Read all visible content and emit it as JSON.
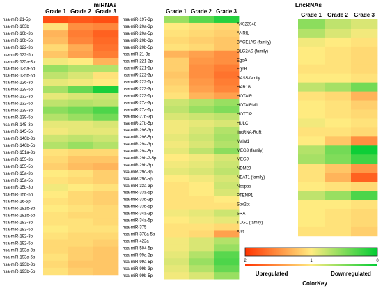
{
  "chart_data": [
    {
      "type": "heatmap",
      "title": "miRNAs",
      "columns": [
        "Grade 1",
        "Grade 2",
        "Grade 3"
      ],
      "rows": [
        {
          "label": "hsa-miR-21-5p",
          "values": [
            1.85,
            1.8,
            1.85
          ]
        },
        {
          "label": "hsa-miR-103b",
          "values": [
            1.05,
            1.5,
            1.55
          ]
        },
        {
          "label": "hsa-miR-10b-3p",
          "values": [
            1.3,
            1.6,
            1.75
          ]
        },
        {
          "label": "hsa-miR-10b-5p",
          "values": [
            1.25,
            1.55,
            1.7
          ]
        },
        {
          "label": "hsa-miR-122-3p",
          "values": [
            1.1,
            1.35,
            1.65
          ]
        },
        {
          "label": "hsa-miR-122-5p",
          "values": [
            1.2,
            1.4,
            1.6
          ]
        },
        {
          "label": "hsa-miR-125a-3p",
          "values": [
            0.95,
            1.0,
            1.3
          ]
        },
        {
          "label": "hsa-miR-125a-5p",
          "values": [
            0.6,
            0.7,
            0.7
          ]
        },
        {
          "label": "hsa-miR-125b-5p",
          "values": [
            0.75,
            0.85,
            1.05
          ]
        },
        {
          "label": "hsa-miR-126-3p",
          "values": [
            0.9,
            0.95,
            1.0
          ]
        },
        {
          "label": "hsa-miR-129-5p",
          "values": [
            0.65,
            0.4,
            0.1
          ]
        },
        {
          "label": "hsa-miR-132-3p",
          "values": [
            0.9,
            0.85,
            0.8
          ]
        },
        {
          "label": "hsa-miR-132-5p",
          "values": [
            0.75,
            0.7,
            0.75
          ]
        },
        {
          "label": "hsa-miR-139-3p",
          "values": [
            0.55,
            0.45,
            0.3
          ]
        },
        {
          "label": "hsa-miR-139-5p",
          "values": [
            0.7,
            0.6,
            0.45
          ]
        },
        {
          "label": "hsa-miR-145-3p",
          "values": [
            0.9,
            0.9,
            0.85
          ]
        },
        {
          "label": "hsa-miR-145-5p",
          "values": [
            0.95,
            0.9,
            0.9
          ]
        },
        {
          "label": "hsa-miR-146b-3p",
          "values": [
            0.8,
            0.75,
            0.8
          ]
        },
        {
          "label": "hsa-miR-146b-5p",
          "values": [
            0.7,
            0.6,
            0.7
          ]
        },
        {
          "label": "hsa-miR-151a-3p",
          "values": [
            1.05,
            1.1,
            1.1
          ]
        },
        {
          "label": "hsa-miR-155-3p",
          "values": [
            1.1,
            1.2,
            1.2
          ]
        },
        {
          "label": "hsa-miR-155-5p",
          "values": [
            1.15,
            1.25,
            1.3
          ]
        },
        {
          "label": "hsa-miR-15a-3p",
          "values": [
            1.0,
            1.05,
            1.15
          ]
        },
        {
          "label": "hsa-miR-15a-5p",
          "values": [
            1.05,
            1.1,
            1.15
          ]
        },
        {
          "label": "hsa-miR-15b-3p",
          "values": [
            0.95,
            1.0,
            1.05
          ]
        },
        {
          "label": "hsa-miR-15b-5p",
          "values": [
            1.0,
            1.1,
            1.15
          ]
        },
        {
          "label": "hsa-miR-16-5p",
          "values": [
            1.05,
            1.1,
            1.15
          ]
        },
        {
          "label": "hsa-miR-181b-3p",
          "values": [
            1.0,
            1.05,
            1.1
          ]
        },
        {
          "label": "hsa-miR-181b-5p",
          "values": [
            1.05,
            1.1,
            1.1
          ]
        },
        {
          "label": "hsa-miR-183-3p",
          "values": [
            1.05,
            1.05,
            1.1
          ]
        },
        {
          "label": "hsa-miR-183-5p",
          "values": [
            1.0,
            1.05,
            1.05
          ]
        },
        {
          "label": "hsa-miR-192-3p",
          "values": [
            1.05,
            1.1,
            1.1
          ]
        },
        {
          "label": "hsa-miR-192-5p",
          "values": [
            1.1,
            1.1,
            1.15
          ]
        },
        {
          "label": "hsa-miR-193a-3p",
          "values": [
            1.1,
            1.15,
            1.2
          ]
        },
        {
          "label": "hsa-miR-193a-5p",
          "values": [
            1.05,
            1.15,
            1.2
          ]
        },
        {
          "label": "hsa-miR-193b-3p",
          "values": [
            1.1,
            1.2,
            1.2
          ]
        },
        {
          "label": "hsa-miR-193b-5p",
          "values": [
            1.05,
            1.15,
            1.2
          ]
        },
        {
          "label": "hsa-miR-197-3p",
          "values": [
            0.6,
            0.35,
            0.15
          ]
        },
        {
          "label": "hsa-miR-20a-3p",
          "values": [
            1.0,
            1.05,
            1.1
          ]
        },
        {
          "label": "hsa-miR-20a-5p",
          "values": [
            1.05,
            1.1,
            1.15
          ]
        },
        {
          "label": "hsa-miR-20b-3p",
          "values": [
            1.1,
            1.15,
            1.2
          ]
        },
        {
          "label": "hsa-miR-20b-5p",
          "values": [
            1.05,
            1.1,
            1.2
          ]
        },
        {
          "label": "hsa-miR-21-3p",
          "values": [
            1.3,
            1.4,
            1.5
          ]
        },
        {
          "label": "hsa-miR-221-3p",
          "values": [
            1.15,
            1.45,
            1.5
          ]
        },
        {
          "label": "hsa-miR-221-5p",
          "values": [
            1.15,
            1.5,
            1.6
          ]
        },
        {
          "label": "hsa-miR-222-3p",
          "values": [
            1.2,
            1.5,
            1.65
          ]
        },
        {
          "label": "hsa-miR-222-5p",
          "values": [
            1.15,
            1.45,
            1.6
          ]
        },
        {
          "label": "hsa-miR-223-3p",
          "values": [
            1.1,
            1.4,
            1.55
          ]
        },
        {
          "label": "hsa-miR-223-5p",
          "values": [
            1.05,
            1.3,
            1.4
          ]
        },
        {
          "label": "hsa-miR-27a-3p",
          "values": [
            0.8,
            0.7,
            0.6
          ]
        },
        {
          "label": "hsa-miR-27a-5p",
          "values": [
            0.75,
            0.6,
            0.5
          ]
        },
        {
          "label": "hsa-miR-27b-3p",
          "values": [
            0.85,
            0.8,
            0.75
          ]
        },
        {
          "label": "hsa-miR-27b-5p",
          "values": [
            0.95,
            0.9,
            0.85
          ]
        },
        {
          "label": "hsa-miR-296-3p",
          "values": [
            0.95,
            0.85,
            0.7
          ]
        },
        {
          "label": "hsa-miR-296-5p",
          "values": [
            0.9,
            0.8,
            0.65
          ]
        },
        {
          "label": "hsa-miR-29a-3p",
          "values": [
            0.95,
            0.85,
            0.7
          ]
        },
        {
          "label": "hsa-miR-29a-5p",
          "values": [
            0.9,
            0.75,
            0.55
          ]
        },
        {
          "label": "hsa-miR-29b-2-5p",
          "values": [
            1.0,
            0.95,
            0.85
          ]
        },
        {
          "label": "hsa-miR-29b-3p",
          "values": [
            0.95,
            0.9,
            0.8
          ]
        },
        {
          "label": "hsa-miR-29c-3p",
          "values": [
            0.9,
            0.85,
            0.75
          ]
        },
        {
          "label": "hsa-miR-29c-5p",
          "values": [
            1.0,
            0.95,
            0.85
          ]
        },
        {
          "label": "hsa-miR-33a-3p",
          "values": [
            1.05,
            1.0,
            0.8
          ]
        },
        {
          "label": "hsa-miR-33a-5p",
          "values": [
            1.05,
            1.0,
            0.85
          ]
        },
        {
          "label": "hsa-miR-33b-3p",
          "values": [
            1.05,
            1.05,
            1.0
          ]
        },
        {
          "label": "hsa-miR-33b-5p",
          "values": [
            1.05,
            1.05,
            1.05
          ]
        },
        {
          "label": "hsa-miR-34a-3p",
          "values": [
            0.95,
            0.9,
            0.8
          ]
        },
        {
          "label": "hsa-miR-34a-5p",
          "values": [
            1.0,
            0.95,
            0.9
          ]
        },
        {
          "label": "hsa-miR-375",
          "values": [
            1.05,
            1.05,
            1.1
          ]
        },
        {
          "label": "hsa-miR-378a-5p",
          "values": [
            1.05,
            1.1,
            1.4
          ]
        },
        {
          "label": "hsa-miR-422a",
          "values": [
            0.95,
            0.85,
            0.7
          ]
        },
        {
          "label": "hsa-miR-504-5p",
          "values": [
            0.95,
            0.85,
            0.6
          ]
        },
        {
          "label": "hsa-miR-99a-3p",
          "values": [
            0.9,
            0.7,
            0.35
          ]
        },
        {
          "label": "hsa-miR-99a-5p",
          "values": [
            0.85,
            0.6,
            0.3
          ]
        },
        {
          "label": "hsa-miR-99b-3p",
          "values": [
            0.9,
            0.7,
            0.4
          ]
        },
        {
          "label": "hsa-miR-99b-5p",
          "values": [
            0.95,
            0.85,
            0.6
          ]
        }
      ]
    },
    {
      "type": "heatmap",
      "title": "LncRNAs",
      "columns": [
        "Grade 1",
        "Grade 2",
        "Grade 3"
      ],
      "rows": [
        {
          "label": "AK023948",
          "values": [
            0.55,
            0.75,
            0.85
          ]
        },
        {
          "label": "ANRIL",
          "values": [
            0.7,
            0.85,
            0.95
          ]
        },
        {
          "label": "BACE1AS (family)",
          "values": [
            0.95,
            1.0,
            1.05
          ]
        },
        {
          "label": "DLG2AS (family)",
          "values": [
            1.0,
            1.05,
            1.1
          ]
        },
        {
          "label": "EgoA",
          "values": [
            1.0,
            1.05,
            1.1
          ]
        },
        {
          "label": "EgoB",
          "values": [
            1.05,
            1.05,
            1.1
          ]
        },
        {
          "label": "GAS5-family",
          "values": [
            1.0,
            1.0,
            1.05
          ]
        },
        {
          "label": "HAR1B",
          "values": [
            0.75,
            0.65,
            0.45
          ]
        },
        {
          "label": "HOTAIR",
          "values": [
            1.05,
            1.1,
            1.3
          ]
        },
        {
          "label": "HOTAIRM1",
          "values": [
            1.0,
            1.05,
            1.15
          ]
        },
        {
          "label": "HOTTIP",
          "values": [
            1.0,
            1.05,
            1.1
          ]
        },
        {
          "label": "HULC",
          "values": [
            0.95,
            1.0,
            1.05
          ]
        },
        {
          "label": "lincRNA-RoR",
          "values": [
            1.05,
            1.05,
            1.1
          ]
        },
        {
          "label": "Malat1",
          "values": [
            1.0,
            1.2,
            1.5
          ]
        },
        {
          "label": "MEG3 (family)",
          "values": [
            0.7,
            0.45,
            0.05
          ]
        },
        {
          "label": "MEG9",
          "values": [
            0.65,
            0.5,
            0.25
          ]
        },
        {
          "label": "NDM29",
          "values": [
            1.05,
            1.2,
            1.45
          ]
        },
        {
          "label": "NEAT1 (family)",
          "values": [
            1.05,
            1.3,
            1.75
          ]
        },
        {
          "label": "Nespas",
          "values": [
            1.0,
            1.05,
            1.1
          ]
        },
        {
          "label": "PTENP1",
          "values": [
            0.75,
            0.6,
            0.3
          ]
        },
        {
          "label": "Sox2ot",
          "values": [
            1.0,
            1.0,
            1.05
          ]
        },
        {
          "label": "SRA",
          "values": [
            1.0,
            1.05,
            1.1
          ]
        },
        {
          "label": "TUG1 (family)",
          "values": [
            1.0,
            1.05,
            1.1
          ]
        },
        {
          "label": "Xist",
          "values": [
            1.05,
            1.05,
            1.15
          ]
        }
      ]
    }
  ],
  "color_key": {
    "title": "ColorKey",
    "ticks": [
      "2",
      "1",
      "0"
    ],
    "range": [
      2,
      0
    ],
    "colors": {
      "high": "#ff3300",
      "mid": "#ffeb80",
      "low": "#00cc33"
    },
    "left_label": "Upregulated",
    "right_label": "Downregulated"
  }
}
